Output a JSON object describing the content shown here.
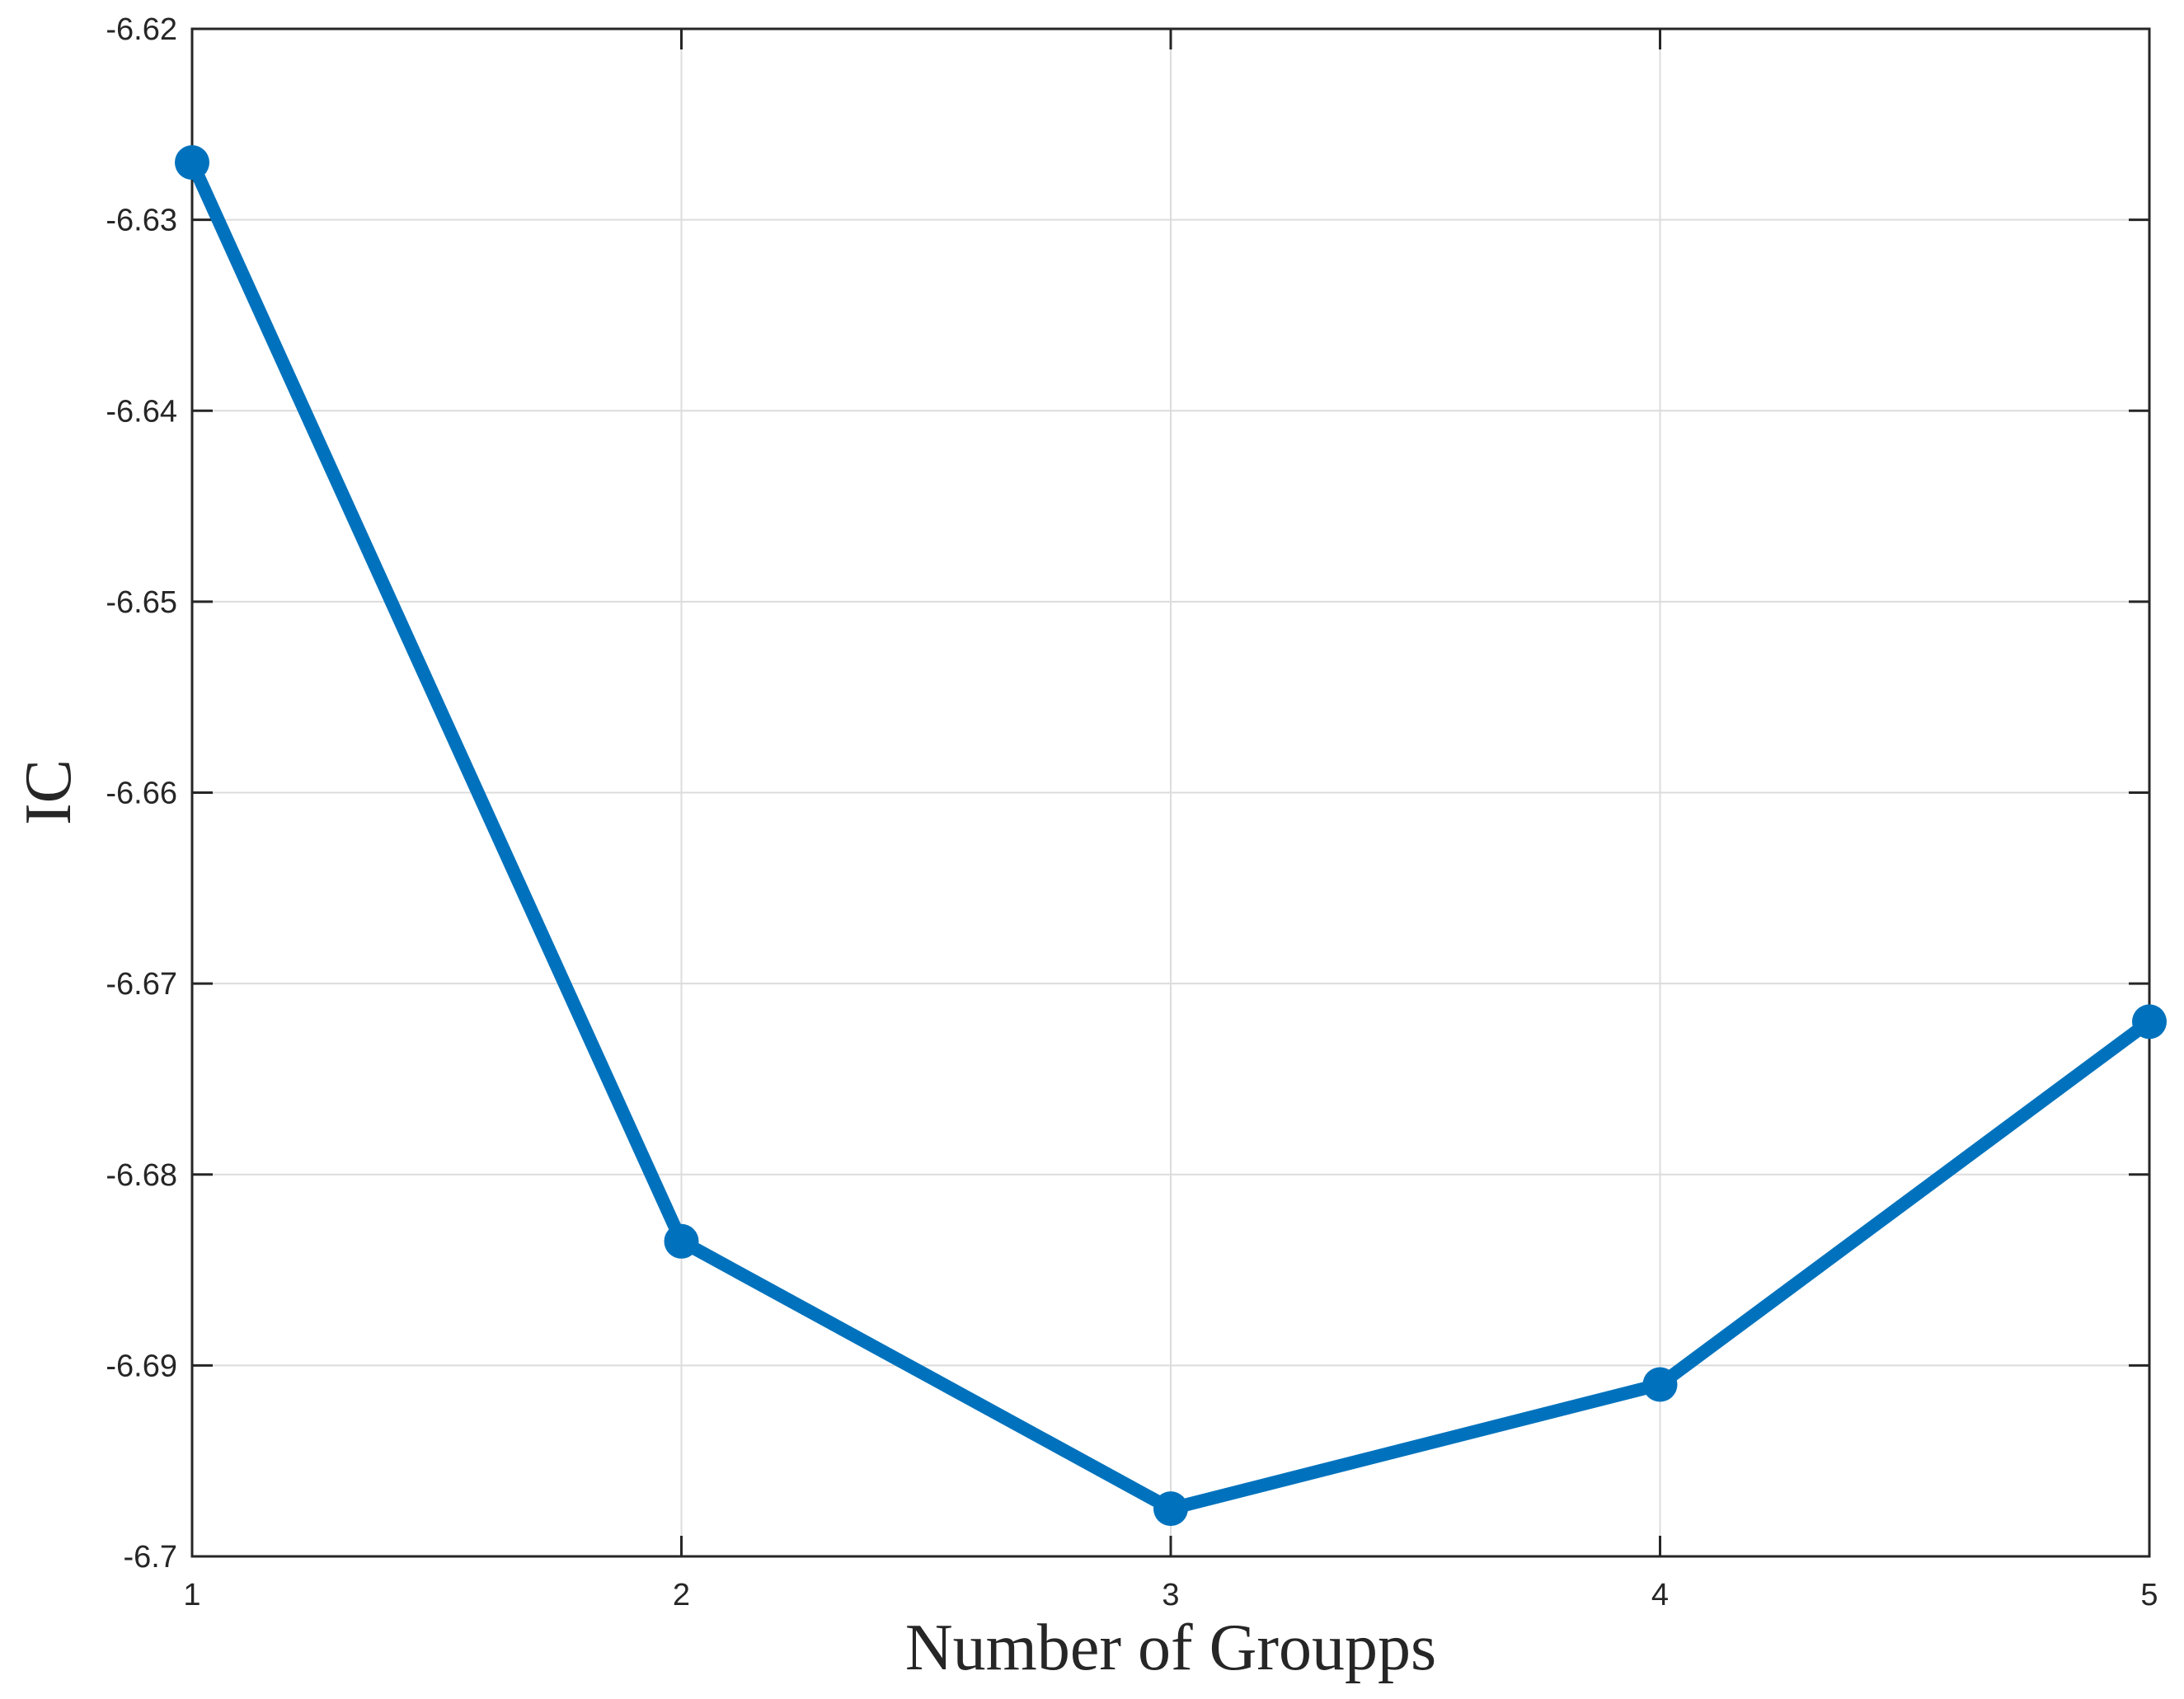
{
  "chart_data": {
    "type": "line",
    "xlabel": "Number of Groupps",
    "ylabel": "IC",
    "series": [
      {
        "name": "IC",
        "x": [
          1,
          2,
          3,
          4,
          5
        ],
        "y": [
          -6.627,
          -6.6835,
          -6.6975,
          -6.691,
          -6.672
        ]
      }
    ],
    "xlim": [
      1,
      5
    ],
    "ylim": [
      -6.7,
      -6.62
    ],
    "xticks": [
      1,
      2,
      3,
      4,
      5
    ],
    "xtick_labels": [
      "1",
      "2",
      "3",
      "4",
      "5"
    ],
    "yticks": [
      -6.7,
      -6.69,
      -6.68,
      -6.67,
      -6.66,
      -6.65,
      -6.64,
      -6.63,
      -6.62
    ],
    "ytick_labels": [
      "-6.7",
      "-6.69",
      "-6.68",
      "-6.67",
      "-6.66",
      "-6.65",
      "-6.64",
      "-6.63",
      "-6.62"
    ],
    "grid": true,
    "legend": "none",
    "colors": {
      "line": "#0072BD",
      "marker": "#0072BD",
      "axis": "#262626",
      "grid": "#dcdcdc",
      "background": "#ffffff"
    }
  }
}
